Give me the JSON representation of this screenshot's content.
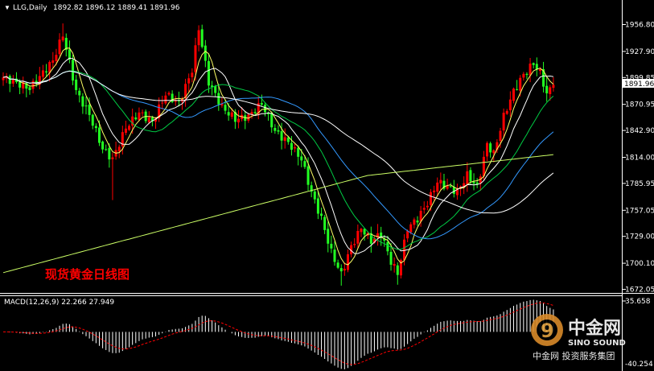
{
  "window": {
    "symbol": "LLG,Daily",
    "ohlc": "1892.82 1896.12 1889.41 1891.96",
    "current_price_label": "1891.96",
    "chinese_title": "现货黄金日线图"
  },
  "macd": {
    "label": "MACD(12,26,9) 22.266 27.949",
    "axis_top": "35.658",
    "axis_zero": "0.00",
    "axis_bottom": "-40.254"
  },
  "watermark": {
    "brand_cn": "中金网",
    "brand_en": "SINO SOUND",
    "sub_cn": "中金网 投资服务集团"
  },
  "colors": {
    "background": "#000000",
    "bull": "#ff0000",
    "bear": "#22ff22",
    "ma5": "#ffff66",
    "ma10": "#ffffff",
    "ma20": "#00cc44",
    "ma40": "#3399ff",
    "ma60": "#ffffff",
    "ma200": "#ccff66",
    "signal": "#ff0000",
    "macd_hist": "#ffffff",
    "title": "#ff0000"
  },
  "chart_data": {
    "type": "candlestick",
    "ylim": [
      1665,
      1975
    ],
    "yticks": [
      "1956.80",
      "1927.90",
      "1899.85",
      "1870.95",
      "1842.90",
      "1814.00",
      "1785.95",
      "1757.05",
      "1729.00",
      "1700.10",
      "1672.05"
    ],
    "ytick_values": [
      1956.8,
      1927.9,
      1899.85,
      1870.95,
      1842.9,
      1814.0,
      1785.95,
      1757.05,
      1729.0,
      1700.1,
      1672.05
    ],
    "price_anchors": [
      {
        "i": 0,
        "c": 1900
      },
      {
        "i": 8,
        "c": 1888
      },
      {
        "i": 12,
        "c": 1905
      },
      {
        "i": 15,
        "c": 1918
      },
      {
        "i": 18,
        "c": 1946
      },
      {
        "i": 22,
        "c": 1885
      },
      {
        "i": 26,
        "c": 1860
      },
      {
        "i": 30,
        "c": 1823
      },
      {
        "i": 33,
        "c": 1812
      },
      {
        "i": 37,
        "c": 1846
      },
      {
        "i": 41,
        "c": 1862
      },
      {
        "i": 45,
        "c": 1852
      },
      {
        "i": 49,
        "c": 1882
      },
      {
        "i": 53,
        "c": 1872
      },
      {
        "i": 57,
        "c": 1908
      },
      {
        "i": 59,
        "c": 1953
      },
      {
        "i": 62,
        "c": 1895
      },
      {
        "i": 66,
        "c": 1868
      },
      {
        "i": 70,
        "c": 1855
      },
      {
        "i": 74,
        "c": 1858
      },
      {
        "i": 78,
        "c": 1872
      },
      {
        "i": 82,
        "c": 1842
      },
      {
        "i": 86,
        "c": 1830
      },
      {
        "i": 90,
        "c": 1812
      },
      {
        "i": 93,
        "c": 1776
      },
      {
        "i": 96,
        "c": 1748
      },
      {
        "i": 99,
        "c": 1712
      },
      {
        "i": 102,
        "c": 1688
      },
      {
        "i": 105,
        "c": 1718
      },
      {
        "i": 108,
        "c": 1738
      },
      {
        "i": 111,
        "c": 1724
      },
      {
        "i": 114,
        "c": 1732
      },
      {
        "i": 117,
        "c": 1702
      },
      {
        "i": 119,
        "c": 1689
      },
      {
        "i": 122,
        "c": 1738
      },
      {
        "i": 125,
        "c": 1748
      },
      {
        "i": 128,
        "c": 1765
      },
      {
        "i": 131,
        "c": 1788
      },
      {
        "i": 134,
        "c": 1782
      },
      {
        "i": 137,
        "c": 1777
      },
      {
        "i": 140,
        "c": 1795
      },
      {
        "i": 143,
        "c": 1782
      },
      {
        "i": 146,
        "c": 1828
      },
      {
        "i": 148,
        "c": 1818
      },
      {
        "i": 151,
        "c": 1858
      },
      {
        "i": 154,
        "c": 1885
      },
      {
        "i": 157,
        "c": 1903
      },
      {
        "i": 160,
        "c": 1915
      },
      {
        "i": 162,
        "c": 1905
      },
      {
        "i": 164,
        "c": 1882
      },
      {
        "i": 166,
        "c": 1891.96
      }
    ],
    "macd_ylim": [
      -40.254,
      35.658
    ]
  }
}
